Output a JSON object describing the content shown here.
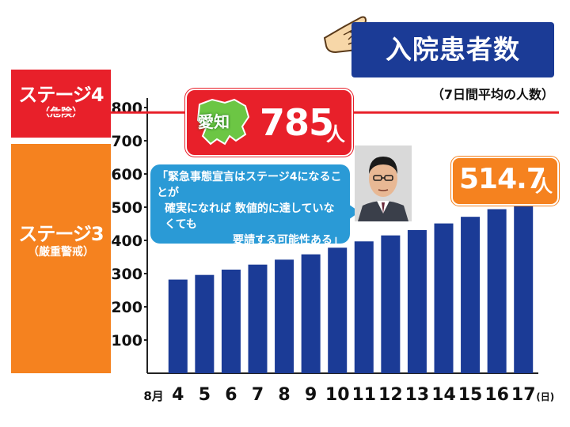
{
  "title": "入院患者数",
  "subtitle": "（7日間平均の人数）",
  "stages": {
    "stage4": {
      "label": "ステージ4",
      "sub": "（危険）"
    },
    "stage3": {
      "label": "ステージ3",
      "sub": "（厳重警戒）"
    }
  },
  "threshold": {
    "region_label": "愛知",
    "value": "785",
    "unit": "人",
    "line_value": 785
  },
  "callout": {
    "line1": "「緊急事態宣言はステージ4になることが",
    "line2": "確実になれば 数値的に達していなくても",
    "line3": "要請する可能性ある」"
  },
  "latest": {
    "value": "514.7",
    "unit": "人"
  },
  "colors": {
    "stage4": "#e8202a",
    "stage3": "#f5821f",
    "bar": "#1b3b96",
    "title_bg": "#1b3b96",
    "callout_bg": "#2a9ad6"
  },
  "icons": [
    "pointing-hand-icon",
    "aichi-map-icon"
  ],
  "chart_data": {
    "type": "bar",
    "title": "入院患者数",
    "subtitle": "（7日間平均の人数）",
    "month_label": "8月",
    "day_suffix": "(日)",
    "categories": [
      "4",
      "5",
      "6",
      "7",
      "8",
      "9",
      "10",
      "11",
      "12",
      "13",
      "14",
      "15",
      "16",
      "17"
    ],
    "values": [
      282,
      296,
      312,
      327,
      342,
      358,
      378,
      397,
      415,
      431,
      451,
      471,
      494,
      514.7
    ],
    "yticks": [
      "100",
      "200",
      "300",
      "400",
      "500",
      "600",
      "700",
      "800"
    ],
    "ylim": [
      0,
      800
    ],
    "reference_line": 785,
    "grid": false
  }
}
